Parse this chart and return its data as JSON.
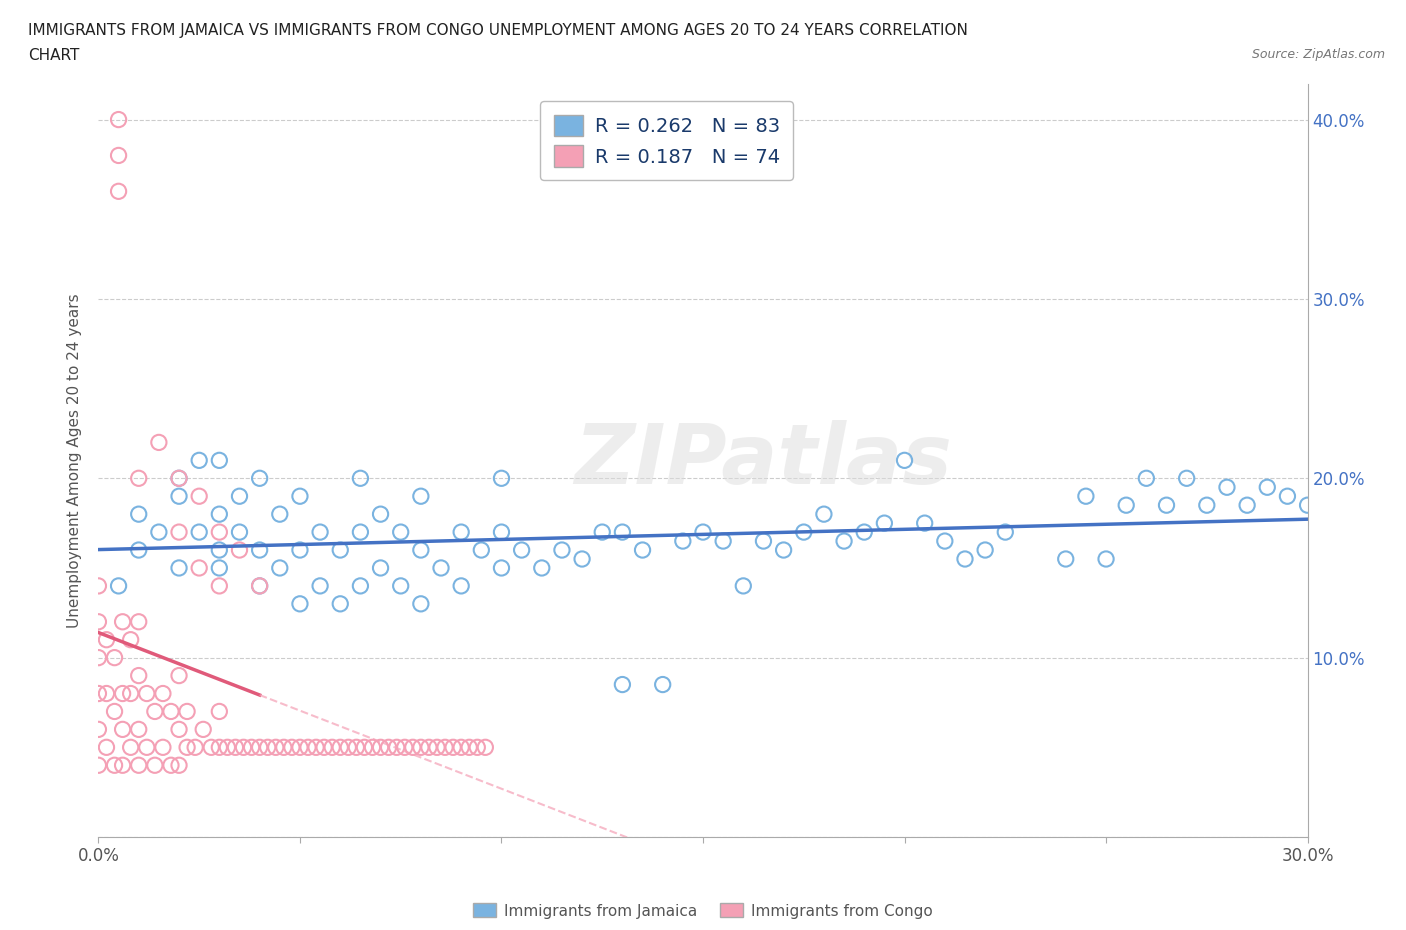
{
  "title_line1": "IMMIGRANTS FROM JAMAICA VS IMMIGRANTS FROM CONGO UNEMPLOYMENT AMONG AGES 20 TO 24 YEARS CORRELATION",
  "title_line2": "CHART",
  "source_text": "Source: ZipAtlas.com",
  "ylabel": "Unemployment Among Ages 20 to 24 years",
  "xlim": [
    0.0,
    0.3
  ],
  "ylim": [
    0.0,
    0.42
  ],
  "xticks": [
    0.0,
    0.05,
    0.1,
    0.15,
    0.2,
    0.25,
    0.3
  ],
  "yticks": [
    0.0,
    0.1,
    0.2,
    0.3,
    0.4
  ],
  "jamaica_color": "#7ab3e0",
  "congo_color": "#f4a0b5",
  "congo_line_color": "#e05a7a",
  "jamaica_line_color": "#4472c4",
  "jamaica_R": 0.262,
  "jamaica_N": 83,
  "congo_R": 0.187,
  "congo_N": 74,
  "legend_label_jamaica": "Immigrants from Jamaica",
  "legend_label_congo": "Immigrants from Congo",
  "watermark": "ZIPatlas",
  "jamaica_x": [
    0.005,
    0.01,
    0.01,
    0.015,
    0.02,
    0.02,
    0.02,
    0.025,
    0.025,
    0.03,
    0.03,
    0.03,
    0.03,
    0.035,
    0.035,
    0.04,
    0.04,
    0.04,
    0.045,
    0.045,
    0.05,
    0.05,
    0.05,
    0.055,
    0.055,
    0.06,
    0.06,
    0.065,
    0.065,
    0.065,
    0.07,
    0.07,
    0.075,
    0.075,
    0.08,
    0.08,
    0.08,
    0.085,
    0.09,
    0.09,
    0.095,
    0.1,
    0.1,
    0.1,
    0.105,
    0.11,
    0.115,
    0.12,
    0.125,
    0.13,
    0.13,
    0.135,
    0.14,
    0.145,
    0.15,
    0.155,
    0.16,
    0.165,
    0.17,
    0.175,
    0.18,
    0.185,
    0.19,
    0.195,
    0.2,
    0.205,
    0.21,
    0.215,
    0.22,
    0.225,
    0.24,
    0.245,
    0.25,
    0.255,
    0.26,
    0.265,
    0.27,
    0.275,
    0.28,
    0.285,
    0.29,
    0.295,
    0.3
  ],
  "jamaica_y": [
    0.14,
    0.16,
    0.18,
    0.17,
    0.19,
    0.15,
    0.2,
    0.17,
    0.21,
    0.15,
    0.18,
    0.16,
    0.21,
    0.17,
    0.19,
    0.14,
    0.16,
    0.2,
    0.15,
    0.18,
    0.13,
    0.16,
    0.19,
    0.14,
    0.17,
    0.13,
    0.16,
    0.14,
    0.17,
    0.2,
    0.15,
    0.18,
    0.14,
    0.17,
    0.13,
    0.16,
    0.19,
    0.15,
    0.14,
    0.17,
    0.16,
    0.15,
    0.17,
    0.2,
    0.16,
    0.15,
    0.16,
    0.155,
    0.17,
    0.085,
    0.17,
    0.16,
    0.085,
    0.165,
    0.17,
    0.165,
    0.14,
    0.165,
    0.16,
    0.17,
    0.18,
    0.165,
    0.17,
    0.175,
    0.21,
    0.175,
    0.165,
    0.155,
    0.16,
    0.17,
    0.155,
    0.19,
    0.155,
    0.185,
    0.2,
    0.185,
    0.2,
    0.185,
    0.195,
    0.185,
    0.195,
    0.19,
    0.185
  ],
  "congo_x": [
    0.0,
    0.0,
    0.0,
    0.0,
    0.0,
    0.0,
    0.002,
    0.002,
    0.002,
    0.004,
    0.004,
    0.004,
    0.006,
    0.006,
    0.006,
    0.006,
    0.008,
    0.008,
    0.008,
    0.01,
    0.01,
    0.01,
    0.01,
    0.012,
    0.012,
    0.014,
    0.014,
    0.016,
    0.016,
    0.018,
    0.018,
    0.02,
    0.02,
    0.02,
    0.022,
    0.022,
    0.024,
    0.026,
    0.028,
    0.03,
    0.03,
    0.032,
    0.034,
    0.036,
    0.038,
    0.04,
    0.042,
    0.044,
    0.046,
    0.048,
    0.05,
    0.052,
    0.054,
    0.056,
    0.058,
    0.06,
    0.062,
    0.064,
    0.066,
    0.068,
    0.07,
    0.072,
    0.074,
    0.076,
    0.078,
    0.08,
    0.082,
    0.084,
    0.086,
    0.088,
    0.09,
    0.092,
    0.094,
    0.096
  ],
  "congo_y": [
    0.04,
    0.06,
    0.08,
    0.1,
    0.12,
    0.14,
    0.05,
    0.08,
    0.11,
    0.04,
    0.07,
    0.1,
    0.04,
    0.06,
    0.08,
    0.12,
    0.05,
    0.08,
    0.11,
    0.04,
    0.06,
    0.09,
    0.12,
    0.05,
    0.08,
    0.04,
    0.07,
    0.05,
    0.08,
    0.04,
    0.07,
    0.04,
    0.06,
    0.09,
    0.05,
    0.07,
    0.05,
    0.06,
    0.05,
    0.05,
    0.07,
    0.05,
    0.05,
    0.05,
    0.05,
    0.05,
    0.05,
    0.05,
    0.05,
    0.05,
    0.05,
    0.05,
    0.05,
    0.05,
    0.05,
    0.05,
    0.05,
    0.05,
    0.05,
    0.05,
    0.05,
    0.05,
    0.05,
    0.05,
    0.05,
    0.05,
    0.05,
    0.05,
    0.05,
    0.05,
    0.05,
    0.05,
    0.05,
    0.05
  ],
  "congo_outlier_x": [
    0.01,
    0.015,
    0.02,
    0.02,
    0.025,
    0.025,
    0.03,
    0.03,
    0.035,
    0.04,
    0.005,
    0.005,
    0.005
  ],
  "congo_outlier_y": [
    0.2,
    0.22,
    0.2,
    0.17,
    0.19,
    0.15,
    0.17,
    0.14,
    0.16,
    0.14,
    0.36,
    0.38,
    0.4
  ]
}
